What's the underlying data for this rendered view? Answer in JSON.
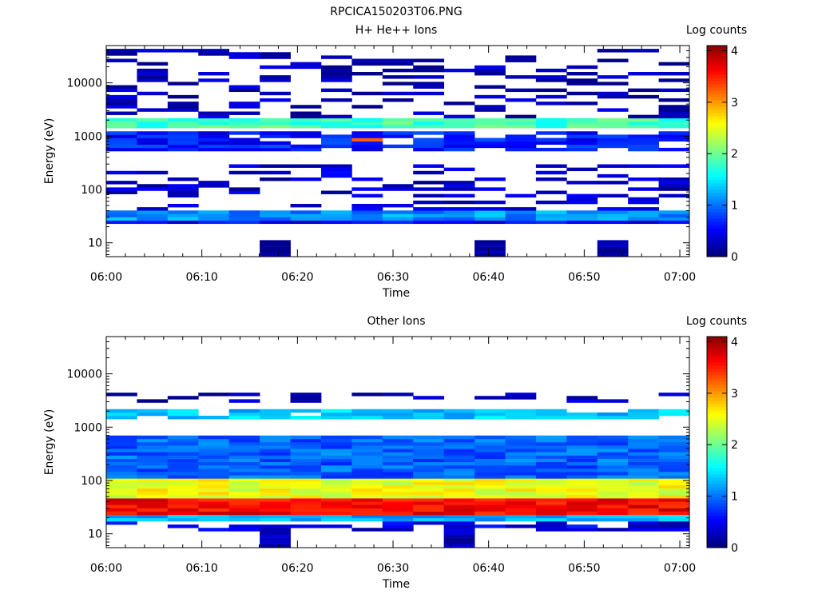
{
  "title": "RPCICA150203T06.PNG",
  "colorbar": {
    "label": "Log counts",
    "ticks": [
      "0",
      "1",
      "2",
      "3",
      "4"
    ],
    "range": [
      0,
      4.1
    ]
  },
  "chart_data": [
    {
      "type": "heatmap",
      "title": "H+ He++ Ions",
      "xlabel": "Time",
      "ylabel": "Energy (eV)",
      "xticks": [
        "06:00",
        "06:10",
        "06:20",
        "06:30",
        "06:40",
        "06:50",
        "07:00"
      ],
      "yticks": [
        "10",
        "100",
        "1000",
        "10000"
      ],
      "yscale": "log",
      "ylim": [
        5.5,
        50000
      ],
      "colorbar_label": "Log counts",
      "n_time_bins": 19,
      "n_energy_bins": 64,
      "bands": [
        {
          "energy_range_eV": [
            5.8,
            11
          ],
          "log_counts": 0.1,
          "time_bins": [
            5,
            12,
            16
          ]
        },
        {
          "energy_range_eV": [
            24,
            30
          ],
          "log_counts": 0.5,
          "time_bins": "all"
        },
        {
          "energy_range_eV": [
            28,
            38
          ],
          "log_counts": 1.1,
          "time_bins": "all"
        },
        {
          "energy_range_eV": [
            40,
            300
          ],
          "log_counts": 0.3,
          "time_bins": "sparse"
        },
        {
          "energy_range_eV": [
            500,
            1300
          ],
          "log_counts": 0.6,
          "time_bins": "most"
        },
        {
          "energy_range_eV": [
            800,
            950
          ],
          "log_counts": 3.2,
          "time_bins": [
            8
          ]
        },
        {
          "energy_range_eV": [
            1500,
            2200
          ],
          "log_counts": 1.8,
          "time_bins": "all"
        },
        {
          "energy_range_eV": [
            2300,
            45000
          ],
          "log_counts": 0.2,
          "time_bins": "sparse"
        }
      ]
    },
    {
      "type": "heatmap",
      "title": "Other Ions",
      "xlabel": "Time",
      "ylabel": "Energy (eV)",
      "xticks": [
        "06:00",
        "06:10",
        "06:20",
        "06:30",
        "06:40",
        "06:50",
        "07:00"
      ],
      "yticks": [
        "10",
        "100",
        "1000",
        "10000"
      ],
      "yscale": "log",
      "ylim": [
        5.5,
        50000
      ],
      "colorbar_label": "Log counts",
      "n_time_bins": 19,
      "n_energy_bins": 64,
      "bands": [
        {
          "energy_range_eV": [
            5.8,
            11
          ],
          "log_counts": 0.2,
          "time_bins": [
            5,
            11
          ]
        },
        {
          "energy_range_eV": [
            11,
            17
          ],
          "log_counts": 0.4,
          "time_bins": "some"
        },
        {
          "energy_range_eV": [
            17,
            22
          ],
          "log_counts": 1.2,
          "time_bins": "all"
        },
        {
          "energy_range_eV": [
            22,
            45
          ],
          "log_counts": 3.6,
          "time_bins": "all"
        },
        {
          "energy_range_eV": [
            45,
            110
          ],
          "log_counts": 2.5,
          "time_bins": "all"
        },
        {
          "energy_range_eV": [
            110,
            700
          ],
          "log_counts": 0.9,
          "time_bins": "all"
        },
        {
          "energy_range_eV": [
            1500,
            2200
          ],
          "log_counts": 1.3,
          "time_bins": "most"
        },
        {
          "energy_range_eV": [
            2800,
            4200
          ],
          "log_counts": 0.2,
          "time_bins": "sparse"
        }
      ]
    }
  ]
}
